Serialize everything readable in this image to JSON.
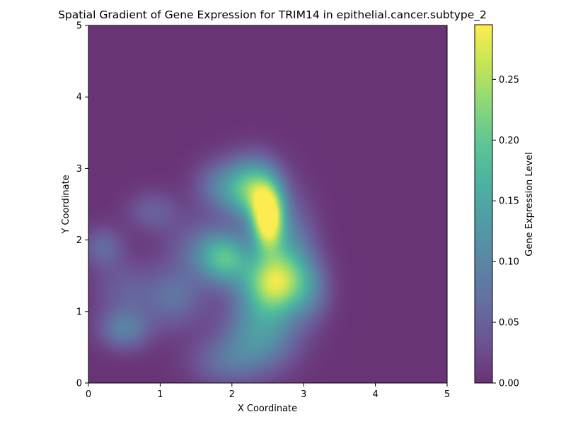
{
  "chart_data": {
    "type": "heatmap",
    "title": "Spatial Gradient of Gene Expression for TRIM14 in epithelial.cancer.subtype_2",
    "xlabel": "X Coordinate",
    "ylabel": "Y Coordinate",
    "xlim": [
      0,
      5
    ],
    "ylim": [
      0,
      5
    ],
    "xticks": [
      "0",
      "1",
      "2",
      "3",
      "4",
      "5"
    ],
    "yticks": [
      "0",
      "1",
      "2",
      "3",
      "4",
      "5"
    ],
    "colormap": "viridis",
    "colormap_alpha": 0.8,
    "colorbar": {
      "label": "Gene Expression Level",
      "range": [
        0,
        0.295
      ],
      "ticks": [
        "0.00",
        "0.05",
        "0.10",
        "0.15",
        "0.20",
        "0.25"
      ]
    },
    "grid": false,
    "hotspots": [
      {
        "x": 2.5,
        "y": 2.3,
        "value": 0.3,
        "sx": 0.15,
        "sy": 0.3
      },
      {
        "x": 2.3,
        "y": 2.7,
        "value": 0.2,
        "sx": 0.25,
        "sy": 0.3
      },
      {
        "x": 2.55,
        "y": 1.4,
        "value": 0.22,
        "sx": 0.3,
        "sy": 0.3
      },
      {
        "x": 1.9,
        "y": 1.75,
        "value": 0.17,
        "sx": 0.25,
        "sy": 0.25
      },
      {
        "x": 2.4,
        "y": 0.7,
        "value": 0.12,
        "sx": 0.35,
        "sy": 0.35
      },
      {
        "x": 1.85,
        "y": 2.75,
        "value": 0.08,
        "sx": 0.25,
        "sy": 0.25
      },
      {
        "x": 2.8,
        "y": 1.8,
        "value": 0.1,
        "sx": 0.25,
        "sy": 0.5
      },
      {
        "x": 3.1,
        "y": 1.3,
        "value": 0.06,
        "sx": 0.2,
        "sy": 0.3
      },
      {
        "x": 1.2,
        "y": 1.2,
        "value": 0.07,
        "sx": 0.3,
        "sy": 0.3
      },
      {
        "x": 1.9,
        "y": 0.3,
        "value": 0.06,
        "sx": 0.35,
        "sy": 0.25
      },
      {
        "x": 0.5,
        "y": 0.75,
        "value": 0.085,
        "sx": 0.25,
        "sy": 0.2
      },
      {
        "x": 0.2,
        "y": 1.9,
        "value": 0.06,
        "sx": 0.2,
        "sy": 0.2
      },
      {
        "x": 0.9,
        "y": 2.4,
        "value": 0.05,
        "sx": 0.25,
        "sy": 0.2
      },
      {
        "x": 0.5,
        "y": 1.3,
        "value": 0.045,
        "sx": 0.3,
        "sy": 0.3
      },
      {
        "x": 1.5,
        "y": 1.9,
        "value": 0.05,
        "sx": 0.3,
        "sy": 0.3
      }
    ]
  }
}
